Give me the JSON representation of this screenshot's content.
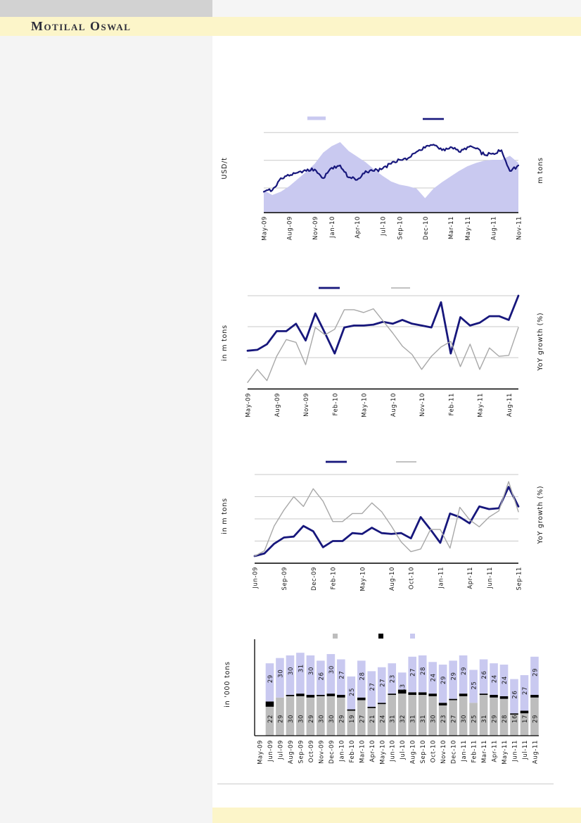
{
  "header": {
    "brand": "Motilal Oswal"
  },
  "colors": {
    "navy": "#17177c",
    "lavender": "#c9c9f0",
    "gray_line": "#a8a8a8",
    "bar_gray": "#bdbdbd",
    "bar_black": "#000000",
    "grid": "#c9c9c9",
    "axis": "#000000",
    "cream": "#fcf5c9",
    "left_panel": "#f4f4f4",
    "top_bar": "#d2d2d2",
    "label": "#161616"
  },
  "chart_data": [
    {
      "type": "area",
      "title": "",
      "left_axis_label": "USD/t",
      "right_axis_label": "m tons",
      "x_tick_labels": [
        "May-09",
        "Aug-09",
        "Nov-09",
        "Jan-10",
        "Apr-10",
        "Jul-10",
        "Sep-10",
        "Dec-10",
        "Mar-11",
        "May-11",
        "Aug-11",
        "Nov-11"
      ],
      "x_tick_month_index": [
        0,
        3,
        6,
        8,
        11,
        14,
        16,
        19,
        22,
        24,
        27,
        30
      ],
      "points": 31,
      "gridlines": 3,
      "legend_labels": [
        "",
        ""
      ],
      "series": [
        {
          "kind": "area",
          "color": "lavender",
          "values": [
            28,
            22,
            26,
            33,
            42,
            51,
            61,
            75,
            83,
            88,
            77,
            70,
            63,
            54,
            46,
            39,
            35,
            33,
            30,
            18,
            30,
            38,
            45,
            52,
            58,
            62,
            65,
            66,
            66,
            71,
            62
          ]
        },
        {
          "kind": "line",
          "color": "navy",
          "width": 2.2,
          "noisy": true,
          "values": [
            26,
            28,
            43,
            46,
            50,
            52,
            54,
            43,
            56,
            59,
            44,
            41,
            52,
            52,
            55,
            61,
            66,
            68,
            76,
            81,
            85,
            78,
            82,
            76,
            82,
            80,
            72,
            74,
            78,
            52,
            59
          ]
        }
      ]
    },
    {
      "type": "line",
      "title": "",
      "left_axis_label": "in m tons",
      "right_axis_label": "YoY growth (%)",
      "x_tick_labels": [
        "May-09",
        "Aug-09",
        "Nov-09",
        "Feb-10",
        "May-10",
        "Aug-10",
        "Nov-10",
        "Feb-11",
        "May-11",
        "Aug-11"
      ],
      "x_tick_month_index": [
        0,
        3,
        6,
        9,
        12,
        15,
        18,
        21,
        24,
        27
      ],
      "points": 29,
      "gridlines": 3,
      "legend_labels": [
        "",
        ""
      ],
      "series": [
        {
          "kind": "line",
          "color": "navy",
          "width": 2.8,
          "values": [
            41,
            42,
            48,
            62,
            62,
            70,
            52,
            81,
            60,
            38,
            66,
            68,
            68,
            69,
            72,
            70,
            74,
            70,
            68,
            66,
            93,
            38,
            77,
            68,
            71,
            78,
            78,
            74,
            100
          ]
        },
        {
          "kind": "line",
          "color": "gray_line",
          "width": 1.4,
          "values": [
            7,
            21,
            9,
            35,
            53,
            50,
            26,
            66,
            58,
            64,
            85,
            85,
            82,
            86,
            73,
            60,
            46,
            37,
            21,
            35,
            45,
            51,
            24,
            48,
            21,
            44,
            35,
            36,
            66
          ]
        }
      ]
    },
    {
      "type": "line",
      "title": "",
      "left_axis_label": "in m tons",
      "right_axis_label": "YoY growth (%)",
      "x_tick_labels": [
        "Jun-09",
        "Sep-09",
        "Dec-09",
        "Feb-10",
        "May-10",
        "Aug-10",
        "Oct-10",
        "Jan-11",
        "Apr-11",
        "Jun-11",
        "Sep-11"
      ],
      "x_tick_month_index": [
        0,
        3,
        6,
        8,
        11,
        14,
        16,
        19,
        22,
        24,
        27
      ],
      "points": 28,
      "gridlines": 4,
      "legend_labels": [
        "",
        ""
      ],
      "series": [
        {
          "kind": "line",
          "color": "navy",
          "width": 2.8,
          "values": [
            8,
            11,
            22,
            29,
            30,
            42,
            36,
            18,
            25,
            25,
            34,
            33,
            40,
            34,
            33,
            34,
            28,
            52,
            38,
            23,
            56,
            52,
            45,
            64,
            61,
            62,
            86,
            64
          ]
        },
        {
          "kind": "line",
          "color": "gray_line",
          "width": 1.4,
          "values": [
            8,
            14,
            42,
            60,
            75,
            64,
            84,
            70,
            47,
            47,
            56,
            56,
            68,
            58,
            42,
            24,
            13,
            16,
            38,
            38,
            17,
            63,
            49,
            41,
            52,
            59,
            92,
            58
          ]
        }
      ]
    },
    {
      "type": "stacked-bar",
      "title": "",
      "left_axis_label": "in '000 tons",
      "legend_labels": [
        "",
        "",
        ""
      ],
      "categories": [
        "May-09",
        "Jun-09",
        "Jul-09",
        "Aug-09",
        "Sep-09",
        "Oct-09",
        "Nov-09",
        "Dec-09",
        "Jan-10",
        "Feb-10",
        "Mar-10",
        "Apr-10",
        "May-10",
        "Jun-10",
        "Jul-10",
        "Aug-10",
        "Sep-10",
        "Oct-10",
        "Nov-10",
        "Dec-10",
        "Jan-11",
        "Feb-11",
        "Mar-11",
        "Apr-11",
        "May-11",
        "Jun-11",
        "Jul-11",
        "Aug-11"
      ],
      "stacks": {
        "bottom_gray": [
          null,
          22,
          29,
          30,
          30,
          29,
          30,
          30,
          29,
          19,
          27,
          21,
          24,
          31,
          32,
          31,
          31,
          30,
          23,
          27,
          30,
          25,
          31,
          29,
          28,
          16,
          17,
          29
        ],
        "middle_black": [
          null,
          4,
          0,
          1,
          2,
          2,
          1,
          2,
          2,
          1,
          2,
          1,
          1,
          1,
          3,
          2,
          2,
          2,
          2,
          1,
          2,
          0,
          1,
          2,
          2,
          1,
          2,
          2
        ],
        "top_lavender": [
          null,
          29,
          30,
          30,
          31,
          30,
          26,
          30,
          27,
          25,
          28,
          27,
          27,
          23,
          13,
          27,
          28,
          24,
          29,
          29,
          29,
          25,
          26,
          24,
          24,
          26,
          27,
          29
        ]
      }
    }
  ]
}
